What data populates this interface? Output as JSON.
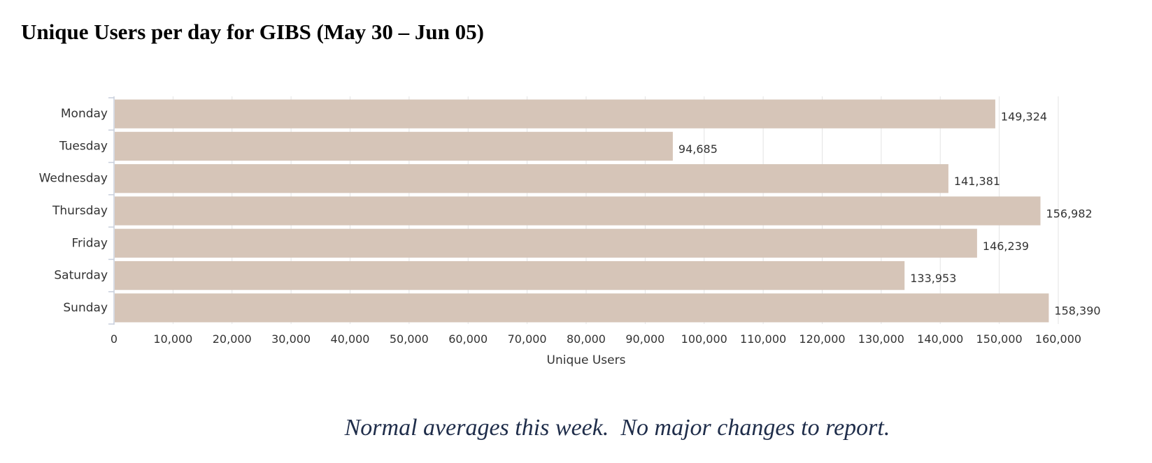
{
  "page": {
    "title": "Unique Users per day for GIBS (May 30 – Jun 05)",
    "note": "Normal averages this week.  No major changes to report."
  },
  "chart_data": {
    "type": "bar",
    "orientation": "horizontal",
    "categories": [
      "Monday",
      "Tuesday",
      "Wednesday",
      "Thursday",
      "Friday",
      "Saturday",
      "Sunday"
    ],
    "values": [
      149324,
      94685,
      141381,
      156982,
      146239,
      133953,
      158390
    ],
    "value_labels": [
      "149,324",
      "94,685",
      "141,381",
      "156,982",
      "146,239",
      "133,953",
      "158,390"
    ],
    "xlabel": "Unique Users",
    "ylabel": "",
    "xlim": [
      0,
      160000
    ],
    "x_ticks": [
      0,
      10000,
      20000,
      30000,
      40000,
      50000,
      60000,
      70000,
      80000,
      90000,
      100000,
      110000,
      120000,
      130000,
      140000,
      150000,
      160000
    ],
    "x_tick_labels": [
      "0",
      "10,000",
      "20,000",
      "30,000",
      "40,000",
      "50,000",
      "60,000",
      "70,000",
      "80,000",
      "90,000",
      "100,000",
      "110,000",
      "120,000",
      "130,000",
      "140,000",
      "150,000",
      "160,000"
    ],
    "grid": true,
    "legend": false,
    "colors": {
      "bar": "#d6c5b8",
      "grid": "#e3e3e3",
      "axis": "#c8cfdc",
      "text": "#333333",
      "note": "#1f2d4a"
    }
  }
}
